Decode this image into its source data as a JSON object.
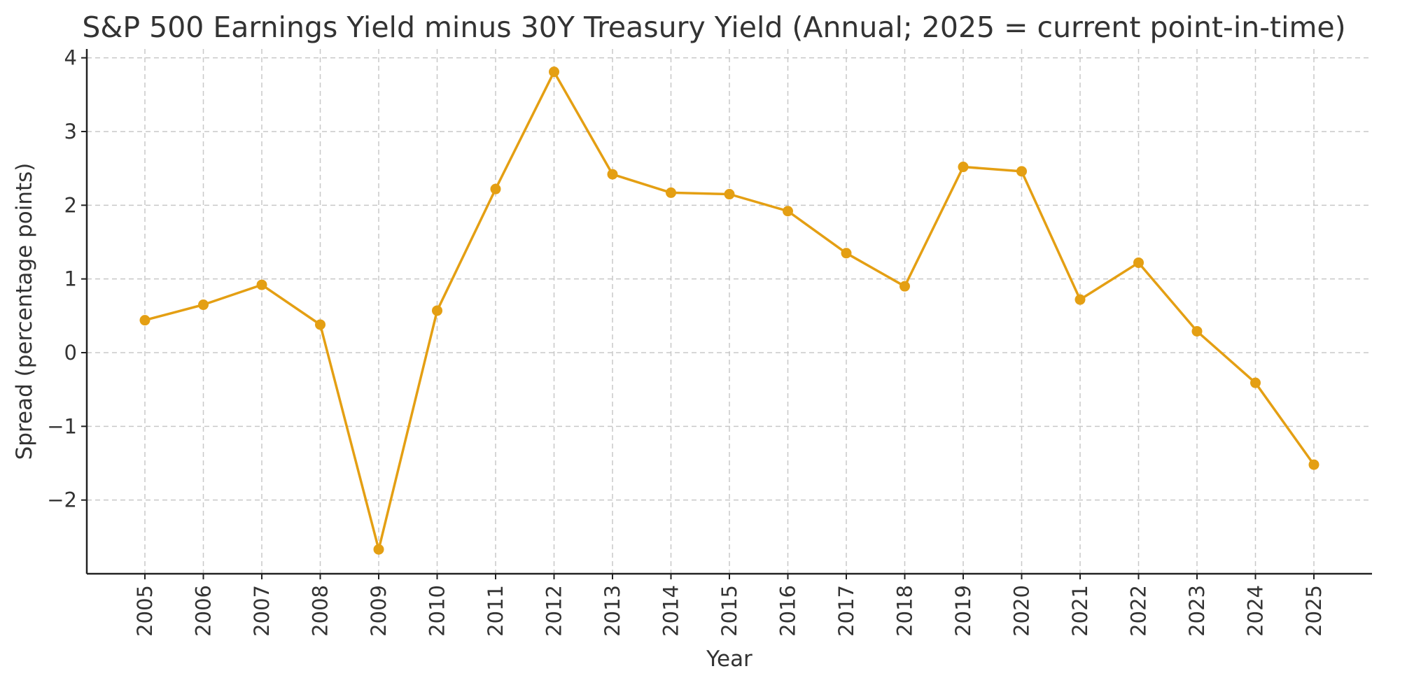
{
  "chart_data": {
    "type": "line",
    "title": "S&P 500 Earnings Yield minus 30Y Treasury Yield (Annual; 2025 = current point-in-time)",
    "xlabel": "Year",
    "ylabel": "Spread (percentage points)",
    "categories": [
      "2005",
      "2006",
      "2007",
      "2008",
      "2009",
      "2010",
      "2011",
      "2012",
      "2013",
      "2014",
      "2015",
      "2016",
      "2017",
      "2018",
      "2019",
      "2020",
      "2021",
      "2022",
      "2023",
      "2024",
      "2025"
    ],
    "series": [
      {
        "values": [
          0.44,
          0.65,
          0.92,
          0.38,
          -2.67,
          0.57,
          2.22,
          3.81,
          2.42,
          2.17,
          2.15,
          1.92,
          1.35,
          0.9,
          2.52,
          2.46,
          0.72,
          1.22,
          0.29,
          -0.41,
          -1.52
        ],
        "color": "#e49f13"
      }
    ],
    "yticks": [
      -2,
      -1,
      0,
      1,
      2,
      3,
      4
    ],
    "ytick_labels": [
      "−2",
      "−1",
      "0",
      "1",
      "2",
      "3",
      "4"
    ],
    "ylim": [
      -3.0,
      4.12
    ],
    "grid": true,
    "grid_style": "dashed",
    "marker": "circle",
    "legend": false
  }
}
